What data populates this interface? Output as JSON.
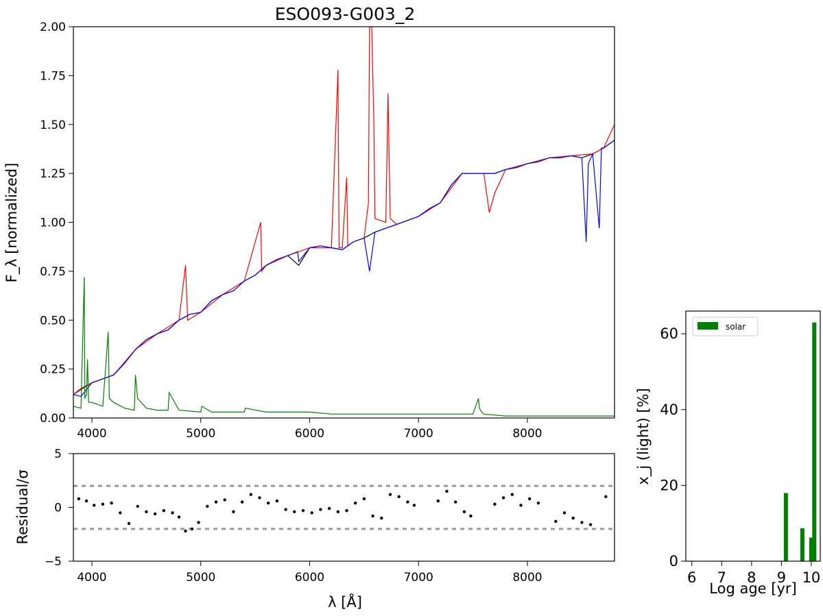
{
  "chart_data": [
    {
      "type": "line",
      "title": "ESO093-G003_2",
      "ylabel": "F_λ [normalized]",
      "xlim": [
        3830,
        8800
      ],
      "ylim": [
        0,
        2.0
      ],
      "yticks": [
        "0.00",
        "0.25",
        "0.50",
        "0.75",
        "1.00",
        "1.25",
        "1.50",
        "1.75",
        "2.00"
      ],
      "xticks": [
        "4000",
        "5000",
        "6000",
        "7000",
        "8000"
      ],
      "series": [
        {
          "color": "#000000",
          "x": [
            3830,
            3900,
            4000,
            4100,
            4200,
            4300,
            4400,
            4500,
            4600,
            4700,
            4800,
            4900,
            5000,
            5100,
            5200,
            5300,
            5400,
            5500,
            5600,
            5700,
            5800,
            5900,
            6000,
            6100,
            6200,
            6300,
            6400,
            6500,
            6600,
            6700,
            6800,
            6900,
            7000,
            7100,
            7200,
            7300,
            7400,
            7500,
            7600,
            7700,
            7800,
            7900,
            8000,
            8100,
            8200,
            8300,
            8400,
            8500,
            8600,
            8700,
            8800
          ],
          "y": [
            0.12,
            0.15,
            0.18,
            0.2,
            0.22,
            0.28,
            0.35,
            0.4,
            0.43,
            0.45,
            0.5,
            0.53,
            0.54,
            0.6,
            0.63,
            0.65,
            0.7,
            0.73,
            0.78,
            0.81,
            0.83,
            0.78,
            0.87,
            0.88,
            0.87,
            0.86,
            0.9,
            0.92,
            0.95,
            0.97,
            0.99,
            1.01,
            1.03,
            1.07,
            1.1,
            1.19,
            1.25,
            1.25,
            1.25,
            1.25,
            1.27,
            1.28,
            1.3,
            1.31,
            1.33,
            1.33,
            1.34,
            1.33,
            1.35,
            1.38,
            1.42
          ]
        },
        {
          "color": "#ff0000",
          "x": [
            3830,
            4000,
            4200,
            4400,
            4600,
            4800,
            4860,
            4880,
            5000,
            5200,
            5400,
            5550,
            5560,
            5600,
            5800,
            6000,
            6200,
            6260,
            6270,
            6300,
            6340,
            6350,
            6400,
            6500,
            6540,
            6550,
            6570,
            6590,
            6600,
            6700,
            6720,
            6740,
            6800,
            7000,
            7200,
            7400,
            7600,
            7650,
            7700,
            7800,
            8000,
            8200,
            8400,
            8600,
            8700,
            8800
          ],
          "y": [
            0.12,
            0.18,
            0.22,
            0.35,
            0.43,
            0.5,
            0.78,
            0.5,
            0.54,
            0.63,
            0.7,
            1.0,
            0.75,
            0.78,
            0.83,
            0.87,
            0.87,
            1.78,
            0.87,
            0.87,
            1.23,
            0.88,
            0.9,
            0.92,
            1.1,
            2.0,
            2.0,
            1.5,
            1.02,
            1.0,
            1.66,
            1.02,
            0.99,
            1.03,
            1.1,
            1.25,
            1.25,
            1.05,
            1.15,
            1.27,
            1.3,
            1.33,
            1.34,
            1.35,
            1.38,
            1.5
          ]
        },
        {
          "color": "#0000ff",
          "x": [
            3830,
            3900,
            4000,
            4100,
            4200,
            4300,
            4400,
            4500,
            4600,
            4700,
            4800,
            4900,
            5000,
            5100,
            5200,
            5300,
            5400,
            5500,
            5600,
            5700,
            5800,
            5890,
            5900,
            6000,
            6100,
            6200,
            6300,
            6400,
            6500,
            6550,
            6600,
            6700,
            6800,
            6900,
            7000,
            7100,
            7200,
            7300,
            7400,
            7500,
            7600,
            7700,
            7800,
            7900,
            8000,
            8100,
            8200,
            8300,
            8400,
            8500,
            8540,
            8560,
            8600,
            8660,
            8680,
            8700,
            8800
          ],
          "y": [
            0.12,
            0.11,
            0.18,
            0.2,
            0.22,
            0.28,
            0.35,
            0.4,
            0.43,
            0.45,
            0.5,
            0.53,
            0.54,
            0.6,
            0.63,
            0.65,
            0.7,
            0.73,
            0.78,
            0.81,
            0.83,
            0.85,
            0.8,
            0.87,
            0.88,
            0.87,
            0.86,
            0.9,
            0.92,
            0.75,
            0.95,
            0.97,
            0.99,
            1.01,
            1.03,
            1.07,
            1.1,
            1.19,
            1.25,
            1.25,
            1.25,
            1.25,
            1.27,
            1.28,
            1.3,
            1.31,
            1.33,
            1.33,
            1.34,
            1.33,
            0.9,
            1.3,
            1.35,
            0.97,
            1.38,
            1.38,
            1.42
          ]
        },
        {
          "color": "#008000",
          "x": [
            3830,
            3900,
            3930,
            3935,
            3950,
            3960,
            3970,
            4000,
            4100,
            4150,
            4160,
            4200,
            4300,
            4390,
            4400,
            4420,
            4500,
            4600,
            4700,
            4710,
            4800,
            5000,
            5010,
            5100,
            5300,
            5400,
            5410,
            5600,
            5800,
            6000,
            6200,
            6400,
            6600,
            6800,
            7000,
            7200,
            7500,
            7550,
            7560,
            7580,
            7600,
            7800,
            8000,
            8200,
            8400,
            8600,
            8800
          ],
          "y": [
            0.06,
            0.05,
            0.72,
            0.1,
            0.12,
            0.3,
            0.08,
            0.08,
            0.06,
            0.44,
            0.1,
            0.08,
            0.05,
            0.04,
            0.22,
            0.1,
            0.05,
            0.04,
            0.04,
            0.13,
            0.04,
            0.03,
            0.06,
            0.03,
            0.03,
            0.03,
            0.05,
            0.03,
            0.03,
            0.03,
            0.02,
            0.02,
            0.02,
            0.02,
            0.02,
            0.02,
            0.02,
            0.1,
            0.05,
            0.03,
            0.02,
            0.01,
            0.01,
            0.01,
            0.01,
            0.01,
            0.01
          ]
        }
      ]
    },
    {
      "type": "scatter",
      "ylabel": "Residual/σ",
      "xlabel": "λ [Å]",
      "xlim": [
        3830,
        8800
      ],
      "ylim": [
        -5,
        5
      ],
      "yticks": [
        "5",
        "0",
        "−5"
      ],
      "xticks": [
        "4000",
        "5000",
        "6000",
        "7000",
        "8000"
      ],
      "reference_lines": [
        2,
        -2
      ],
      "x": [
        3880,
        3950,
        4020,
        4100,
        4180,
        4260,
        4340,
        4420,
        4500,
        4580,
        4660,
        4740,
        4800,
        4860,
        4920,
        4980,
        5060,
        5140,
        5220,
        5300,
        5380,
        5460,
        5540,
        5620,
        5700,
        5780,
        5860,
        5940,
        6020,
        6100,
        6180,
        6260,
        6340,
        6420,
        6500,
        6580,
        6660,
        6740,
        6820,
        6900,
        6960,
        7180,
        7260,
        7340,
        7420,
        7480,
        7700,
        7780,
        7860,
        7940,
        8020,
        8100,
        8260,
        8340,
        8420,
        8500,
        8580,
        8720
      ],
      "y": [
        0.8,
        0.6,
        0.2,
        0.3,
        0.4,
        -0.5,
        -1.5,
        0.1,
        -0.4,
        -0.6,
        -0.3,
        -0.5,
        -0.9,
        -2.2,
        -2.0,
        -1.4,
        0.1,
        0.5,
        0.7,
        -0.4,
        0.5,
        1.2,
        0.9,
        0.4,
        0.6,
        -0.2,
        -0.4,
        -0.3,
        -0.5,
        -0.2,
        -0.1,
        -0.4,
        -0.3,
        0.4,
        0.8,
        -0.8,
        -1.0,
        1.2,
        1.0,
        0.5,
        0.2,
        0.6,
        1.5,
        0.5,
        -0.4,
        -0.8,
        0.3,
        0.9,
        1.2,
        0.2,
        0.8,
        0.4,
        -1.3,
        -0.5,
        -1.0,
        -1.4,
        -1.6,
        1.0
      ]
    },
    {
      "type": "bar",
      "xlabel": "Log age [yr]",
      "ylabel": "x_j (light) [%]",
      "xlim": [
        5.8,
        10.3
      ],
      "ylim": [
        0,
        66
      ],
      "xticks": [
        "6",
        "7",
        "8",
        "9",
        "10"
      ],
      "yticks": [
        "0",
        "20",
        "40",
        "60"
      ],
      "legend": "solar",
      "legend_position": "top-left",
      "color": "#008000",
      "x": [
        9.15,
        9.7,
        10.0,
        10.1
      ],
      "values": [
        18,
        8.7,
        6.2,
        63
      ]
    }
  ]
}
